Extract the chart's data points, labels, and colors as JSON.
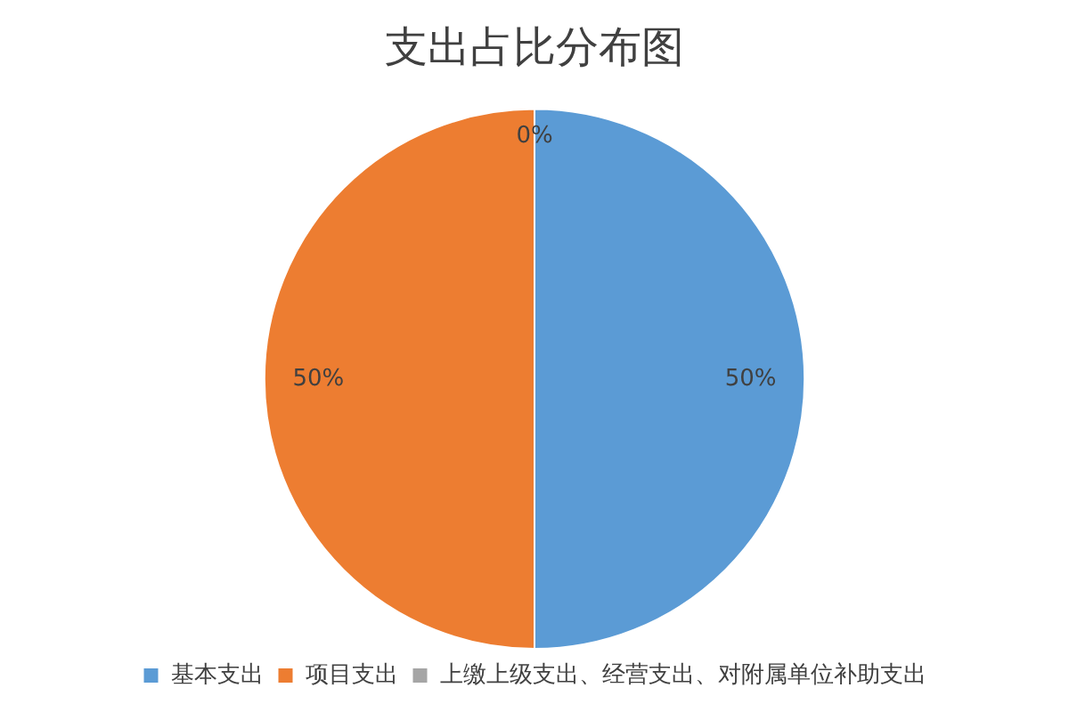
{
  "chart_data": {
    "type": "pie",
    "title": "支出占比分布图",
    "categories": [
      "基本支出",
      "项目支出",
      "上缴上级支出、经营支出、对附属单位补助支出"
    ],
    "values": [
      50,
      50,
      0
    ],
    "colors": [
      "#5b9bd5",
      "#ed7d31",
      "#a5a5a5"
    ],
    "value_labels": [
      "50%",
      "50%",
      "0%"
    ],
    "legend": "bottom"
  }
}
